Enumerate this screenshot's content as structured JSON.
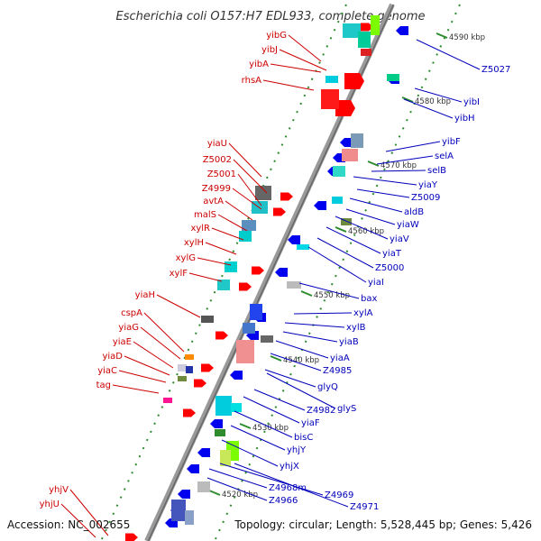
{
  "title": "Escherichia coli O157:H7 EDL933, complete genome",
  "footer": {
    "accession": "Accession: NC_002655",
    "summary": "Topology: circular; Length: 5,528,445 bp; Genes: 5,426"
  },
  "colors": {
    "left_label": "#cc0000",
    "right_label": "#0000bb",
    "forward_gene": "#ff0000",
    "reverse_gene": "#0000ee",
    "tick": "#2e8b2e",
    "backbone": "#999999"
  },
  "scale_ticks": [
    "4520 kbp",
    "4530 kbp",
    "4540 kbp",
    "4550 kbp",
    "4560 kbp",
    "4570 kbp",
    "4580 kbp",
    "4590 kbp"
  ],
  "left_labels": [
    "yibG",
    "yibJ",
    "yibA",
    "rhsA",
    "yiaU",
    "Z5002",
    "Z5001",
    "Z4999",
    "avtA",
    "malS",
    "xylR",
    "xylH",
    "xylG",
    "xylF",
    "yiaH",
    "cspA",
    "yiaG",
    "yiaE",
    "yiaD",
    "yiaC",
    "tag",
    "yhjV",
    "yhjU"
  ],
  "right_labels": [
    "Z5027",
    "yibI",
    "yibH",
    "yibF",
    "selA",
    "selB",
    "yiaY",
    "Z5009",
    "aldB",
    "yiaW",
    "yiaV",
    "yiaT",
    "Z5000",
    "yiaI",
    "bax",
    "xylA",
    "xylB",
    "yiaB",
    "yiaA",
    "Z4985",
    "glyQ",
    "glyS",
    "Z4982",
    "yiaF",
    "bisC",
    "yhjY",
    "yhjX",
    "Z4968m",
    "Z4969",
    "Z4966",
    "Z4971"
  ]
}
